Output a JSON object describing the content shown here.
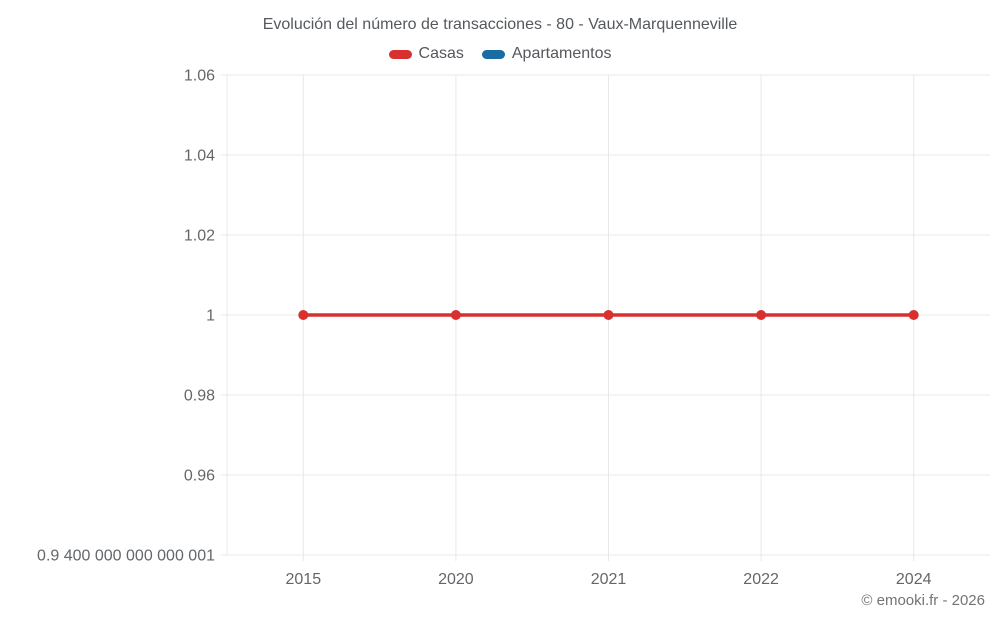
{
  "page": {
    "background": "#ffffff"
  },
  "chart_data": {
    "type": "line",
    "title": "Evolución del número de transacciones - 80 - Vaux-Marquenneville",
    "categories": [
      "2015",
      "2020",
      "2021",
      "2022",
      "2024"
    ],
    "series": [
      {
        "name": "Casas",
        "color": "#d7302f",
        "values": [
          1,
          1,
          1,
          1,
          1
        ]
      },
      {
        "name": "Apartamentos",
        "color": "#1a6da2",
        "values": []
      }
    ],
    "y_ticks": [
      {
        "label": "1.06",
        "value": 1.06
      },
      {
        "label": "1.04",
        "value": 1.04
      },
      {
        "label": "1.02",
        "value": 1.02
      },
      {
        "label": "1",
        "value": 1
      },
      {
        "label": "0.98",
        "value": 0.98
      },
      {
        "label": "0.96",
        "value": 0.96
      },
      {
        "label": "0.9 400 000 000 000 001",
        "value": 0.9400000000000001
      }
    ],
    "ylim": [
      0.94,
      1.06
    ],
    "grid": true,
    "legend_position": "top",
    "grid_color": "#e8e8e8",
    "tick_label_color": "#63676b"
  },
  "footer": {
    "copyright": "© emooki.fr - 2026"
  }
}
